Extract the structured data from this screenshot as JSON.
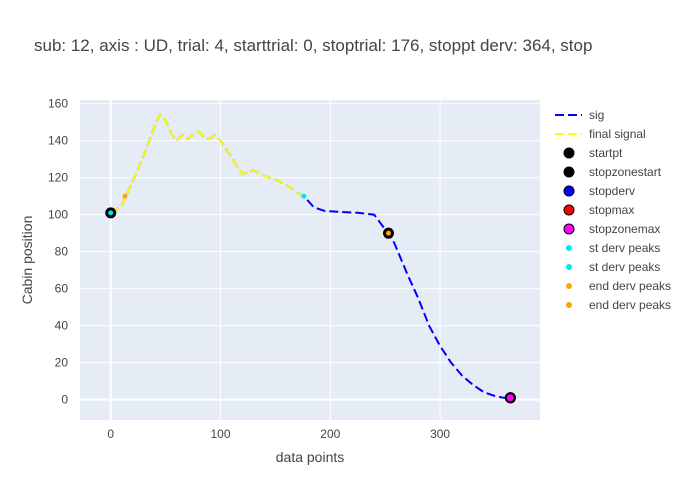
{
  "chart_data": {
    "type": "line",
    "title": "sub: 12, axis : UD, trial: 4, starttrial: 0, stoptrial: 176, stoppt derv: 364, stop",
    "xlabel": "data points",
    "ylabel": "Cabin position",
    "xlim": [
      -28,
      391
    ],
    "ylim": [
      -11,
      162
    ],
    "xticks": [
      0,
      100,
      200,
      300
    ],
    "yticks": [
      0,
      20,
      40,
      60,
      80,
      100,
      120,
      140,
      160
    ],
    "grid": true,
    "legend_position": "right",
    "plot_background": "#e5ecf6",
    "series": [
      {
        "name": "sig",
        "style": "dash",
        "color": "#0000ff",
        "x": [
          0,
          10,
          20,
          30,
          40,
          45,
          50,
          55,
          60,
          65,
          70,
          75,
          80,
          85,
          90,
          95,
          100,
          110,
          120,
          130,
          140,
          150,
          160,
          170,
          176,
          185,
          195,
          210,
          225,
          240,
          245,
          250,
          253,
          258,
          263,
          270,
          280,
          290,
          300,
          310,
          320,
          330,
          340,
          350,
          358,
          363,
          365
        ],
        "y": [
          101,
          105,
          118,
          132,
          148,
          154,
          151,
          144,
          140,
          143,
          141,
          143,
          145,
          142,
          141,
          143,
          140,
          131,
          122,
          124,
          121,
          119,
          116,
          112,
          110,
          104,
          102,
          101.5,
          101,
          100,
          96,
          92,
          90,
          85,
          78,
          68,
          55,
          40,
          29,
          20,
          13,
          8,
          4,
          2,
          1,
          1,
          1
        ]
      },
      {
        "name": "final signal",
        "style": "dash",
        "color": "#ffff00",
        "x": [
          0,
          10,
          20,
          30,
          40,
          45,
          50,
          55,
          60,
          65,
          70,
          75,
          80,
          85,
          90,
          95,
          100,
          110,
          120,
          130,
          140,
          150,
          160,
          170,
          176
        ],
        "y": [
          101,
          105,
          118,
          132,
          148,
          154,
          151,
          144,
          140,
          143,
          141,
          143,
          145,
          142,
          141,
          143,
          140,
          131,
          122,
          124,
          121,
          119,
          116,
          112,
          110
        ]
      },
      {
        "name": "startpt",
        "style": "marker",
        "color": "#000000",
        "x": [
          0
        ],
        "y": [
          101
        ]
      },
      {
        "name": "stopzonestart",
        "style": "marker",
        "color": "#000000",
        "x": [
          253
        ],
        "y": [
          90
        ]
      },
      {
        "name": "stopderv",
        "style": "marker",
        "color": "#0000ff",
        "x": [
          364
        ],
        "y": [
          1
        ]
      },
      {
        "name": "stopmax",
        "style": "marker",
        "color": "#ff0000",
        "x": [
          364
        ],
        "y": [
          1
        ]
      },
      {
        "name": "stopzonemax",
        "style": "marker",
        "color": "#ff00ff",
        "x": [
          364
        ],
        "y": [
          1
        ]
      },
      {
        "name": "st derv peaks",
        "style": "dot",
        "color": "#00e5ee",
        "x": [
          0
        ],
        "y": [
          101
        ]
      },
      {
        "name": "st derv peaks",
        "style": "dot",
        "color": "#00e5ee",
        "x": [
          176
        ],
        "y": [
          110
        ]
      },
      {
        "name": "end derv peaks",
        "style": "dot",
        "color": "#ffa500",
        "x": [
          13
        ],
        "y": [
          110
        ]
      },
      {
        "name": "end derv peaks",
        "style": "dot",
        "color": "#ffa500",
        "x": [
          253
        ],
        "y": [
          90
        ]
      }
    ]
  }
}
